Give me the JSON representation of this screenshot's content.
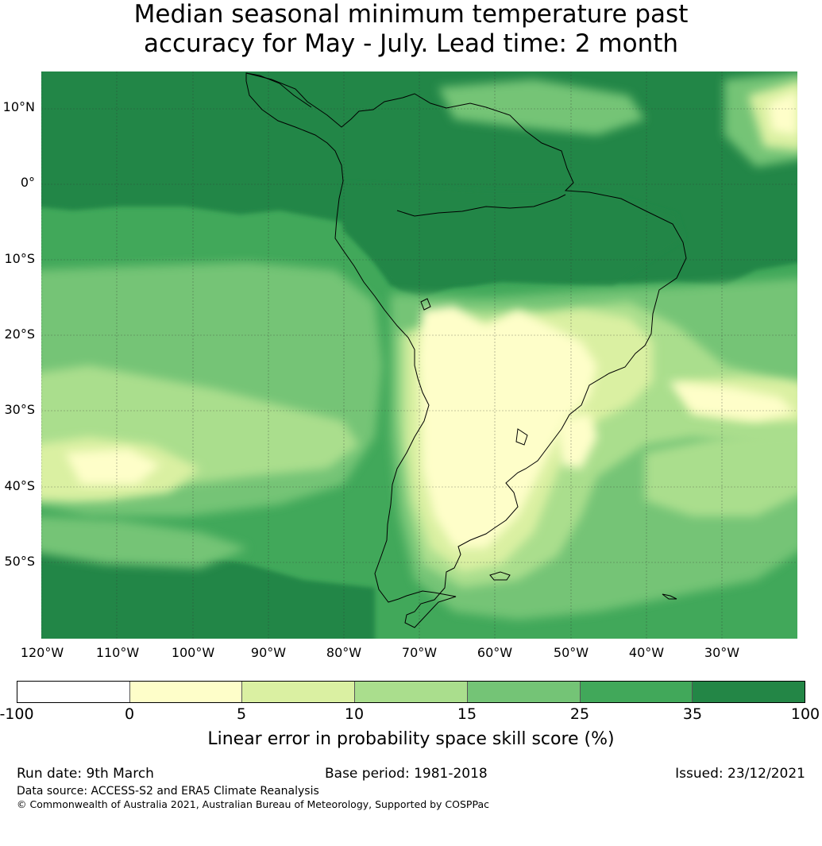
{
  "title": {
    "line1": "Median seasonal minimum temperature past",
    "line2": "accuracy for May - July. Lead time: 2 month"
  },
  "map": {
    "lat_labels": [
      "10°N",
      "0°",
      "10°S",
      "20°S",
      "30°S",
      "40°S",
      "50°S"
    ],
    "lon_labels": [
      "120°W",
      "110°W",
      "100°W",
      "90°W",
      "80°W",
      "70°W",
      "60°W",
      "50°W",
      "40°W",
      "30°W"
    ],
    "ocean_color": "#41a85a",
    "dark_color": "#238646",
    "coast_color": "#000000"
  },
  "colorbar": {
    "ticks": [
      "-100",
      "0",
      "5",
      "10",
      "15",
      "25",
      "35",
      "100"
    ],
    "colors": [
      "#ffffff",
      "#fefec9",
      "#daf0a2",
      "#aade8d",
      "#74c476",
      "#41a85a",
      "#238646"
    ],
    "label": "Linear error in probability space skill score (%)"
  },
  "footer": {
    "run_date": "Run date: 9th March",
    "base_period": "Base period: 1981-2018",
    "issued": "Issued: 23/12/2021",
    "data_source": "Data source: ACCESS-S2 and ERA5 Climate Reanalysis",
    "copyright": "© Commonwealth of Australia 2021, Australian Bureau of Meteorology, Supported by COSPPac"
  }
}
